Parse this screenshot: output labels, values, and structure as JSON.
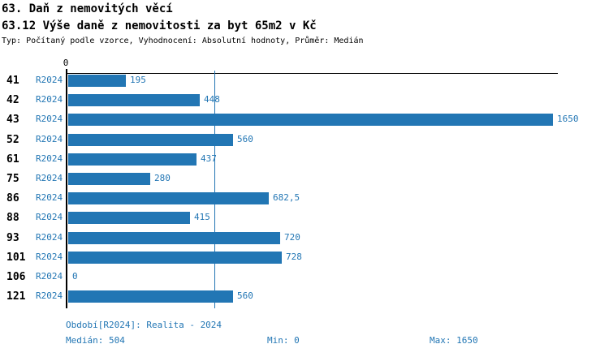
{
  "header": {
    "title": "63. Daň z nemovitých věcí",
    "subtitle": "63.12 Výše daně z nemovitosti za byt 65m2 v Kč",
    "meta": "Typ: Počítaný podle vzorce, Vyhodnocení: Absolutní hodnoty, Průměr: Medián"
  },
  "chart_data": {
    "type": "bar",
    "orientation": "horizontal",
    "categories": [
      "41",
      "42",
      "43",
      "52",
      "61",
      "75",
      "86",
      "88",
      "93",
      "101",
      "106",
      "121"
    ],
    "series_label": "R2024",
    "values": [
      195,
      448,
      1650,
      560,
      437,
      280,
      682.5,
      415,
      720,
      728,
      0,
      560
    ],
    "value_labels": [
      "195",
      "448",
      "1650",
      "560",
      "437",
      "280",
      "682,5",
      "415",
      "720",
      "728",
      "0",
      "560"
    ],
    "xlim": [
      0,
      1650
    ],
    "zero_label": "0",
    "median_value": 504,
    "grid": "median-line-only",
    "legend": "none",
    "bar_color": "#2276B4",
    "text_color": "#2276B4",
    "axis_color": "#000000"
  },
  "footer": {
    "period": "Období[R2024]: Realita - 2024",
    "median": "Medián: 504",
    "min": "Min: 0",
    "max": "Max: 1650"
  }
}
